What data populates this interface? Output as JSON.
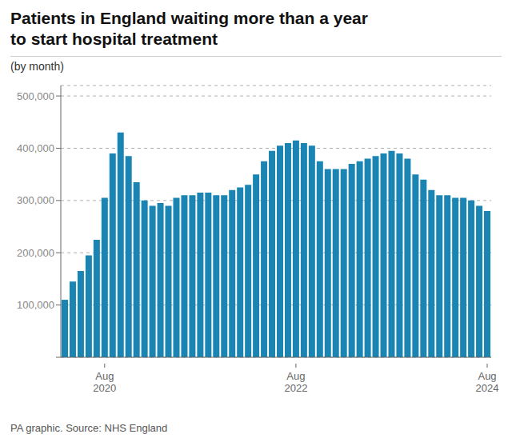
{
  "chart_data": {
    "type": "bar",
    "title": "Patients in England waiting more than a year\nto start hospital treatment",
    "subtitle": "(by month)",
    "source": "PA graphic. Source: NHS England",
    "categories": [
      null,
      null,
      null,
      null,
      null,
      "Aug\n2020",
      null,
      null,
      null,
      null,
      null,
      null,
      null,
      null,
      null,
      null,
      null,
      null,
      null,
      null,
      null,
      null,
      null,
      null,
      null,
      null,
      null,
      null,
      null,
      "Aug\n2022",
      null,
      null,
      null,
      null,
      null,
      null,
      null,
      null,
      null,
      null,
      null,
      null,
      null,
      null,
      null,
      null,
      null,
      null,
      null,
      null,
      null,
      null,
      null,
      "Aug\n2024"
    ],
    "values": [
      110000,
      145000,
      165000,
      195000,
      225000,
      305000,
      390000,
      430000,
      385000,
      335000,
      300000,
      290000,
      295000,
      290000,
      305000,
      310000,
      310000,
      315000,
      315000,
      310000,
      310000,
      320000,
      325000,
      330000,
      350000,
      375000,
      395000,
      405000,
      410000,
      415000,
      410000,
      405000,
      375000,
      360000,
      360000,
      360000,
      370000,
      375000,
      380000,
      385000,
      390000,
      395000,
      390000,
      380000,
      350000,
      340000,
      320000,
      310000,
      310000,
      305000,
      305000,
      300000,
      290000,
      280000
    ],
    "color": "#1a85b3",
    "ylim": [
      0,
      520000
    ],
    "yticks": [
      {
        "value": 0,
        "label": ""
      },
      {
        "value": 100000,
        "label": "100,000"
      },
      {
        "value": 200000,
        "label": "200,000"
      },
      {
        "value": 300000,
        "label": "300,000"
      },
      {
        "value": 400000,
        "label": "400,000"
      },
      {
        "value": 500000,
        "label": "500,000"
      }
    ],
    "grid": true
  }
}
